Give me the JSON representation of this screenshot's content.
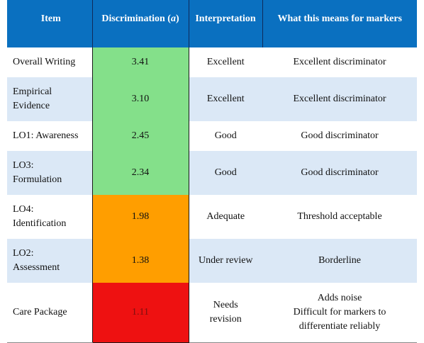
{
  "table": {
    "headers": [
      "Item",
      "Discrimination (a)",
      "Interpretation",
      "What this means for markers"
    ],
    "header_parts": {
      "discrimination_label": "Discrimination (",
      "discrimination_symbol": "a",
      "discrimination_close": ")"
    },
    "rows": [
      {
        "item": [
          "Overall Writing"
        ],
        "discrimination": "3.41",
        "interpretation": [
          "Excellent"
        ],
        "meaning": [
          "Excellent discriminator"
        ],
        "level_color": "#84e08a"
      },
      {
        "item": [
          "Empirical",
          "Evidence"
        ],
        "discrimination": "3.10",
        "interpretation": [
          "Excellent"
        ],
        "meaning": [
          "Excellent discriminator"
        ],
        "level_color": "#84e08a"
      },
      {
        "item": [
          "LO1: Awareness"
        ],
        "discrimination": "2.45",
        "interpretation": [
          "Good"
        ],
        "meaning": [
          "Good discriminator"
        ],
        "level_color": "#84e08a"
      },
      {
        "item": [
          "LO3:",
          "Formulation"
        ],
        "discrimination": "2.34",
        "interpretation": [
          "Good"
        ],
        "meaning": [
          "Good discriminator"
        ],
        "level_color": "#84e08a"
      },
      {
        "item": [
          "LO4:",
          "Identification"
        ],
        "discrimination": "1.98",
        "interpretation": [
          "Adequate"
        ],
        "meaning": [
          "Threshold acceptable"
        ],
        "level_color": "#ff9e00"
      },
      {
        "item": [
          "LO2:",
          "Assessment"
        ],
        "discrimination": "1.38",
        "interpretation": [
          "Under review"
        ],
        "meaning": [
          "Borderline"
        ],
        "level_color": "#ff9e00"
      },
      {
        "item": [
          "Care Package"
        ],
        "discrimination": "1.11",
        "interpretation": [
          "Needs",
          "revision"
        ],
        "meaning": [
          "Adds noise",
          "Difficult for markers to",
          "differentiate reliably"
        ],
        "level_color": "#ee1111"
      }
    ]
  }
}
